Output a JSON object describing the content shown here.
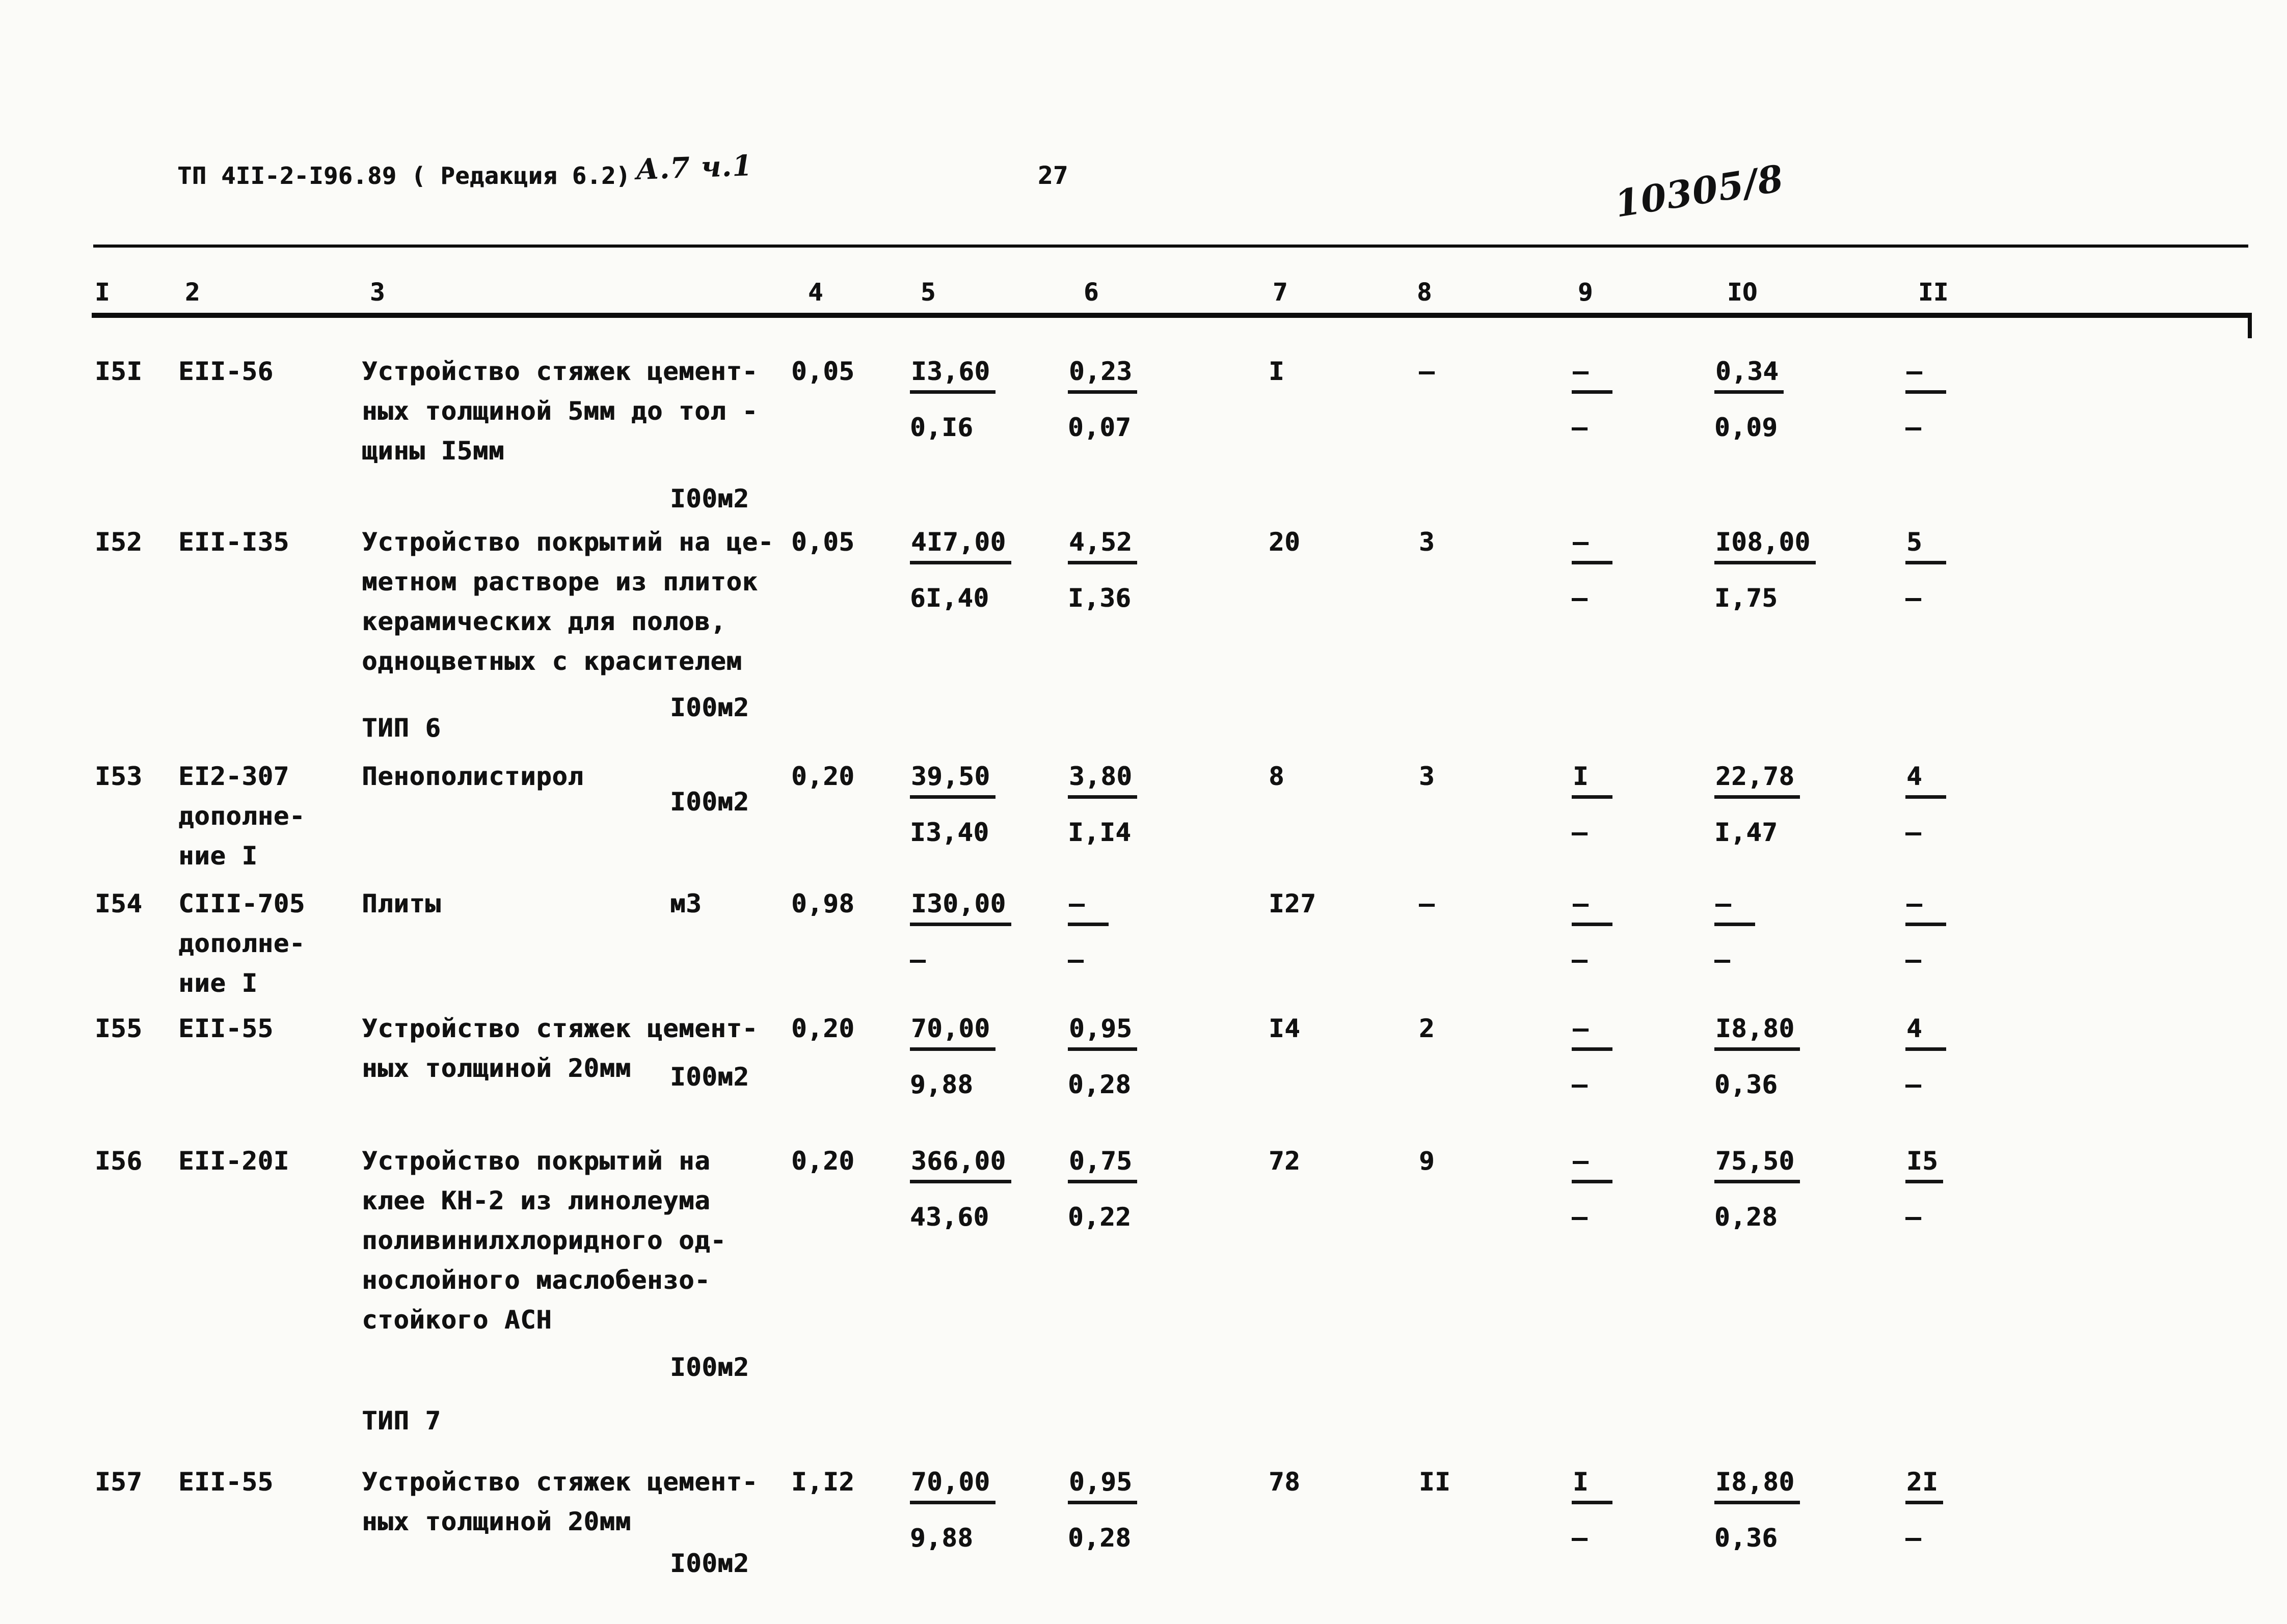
{
  "page": {
    "header": {
      "doc_code": "ТП 4II-2-I96.89 ( Редакция 6.2)",
      "handwritten_edition": "А.7 ч.1",
      "page_number": "27",
      "handwritten_ref": "10305/8"
    },
    "columns": [
      "I",
      "2",
      "3",
      "4",
      "5",
      "6",
      "7",
      "8",
      "9",
      "IO",
      "II"
    ]
  },
  "rows": [
    {
      "num": "I5I",
      "code": [
        "ЕII-56"
      ],
      "desc": [
        "Устройство стяжек цемент-",
        "ных толщиной 5мм до тол -",
        "щины I5мм"
      ],
      "unit": "I00м2",
      "c4": "0,05",
      "c5": [
        "I3,60",
        "0,I6"
      ],
      "c6": [
        "0,23",
        "0,07"
      ],
      "c7": "I",
      "c8": "–",
      "c9": [
        "–",
        "–"
      ],
      "c10": [
        "0,34",
        "0,09"
      ],
      "c11": [
        "–",
        "–"
      ]
    },
    {
      "num": "I52",
      "code": [
        "ЕII-I35"
      ],
      "desc": [
        "Устройство покрытий на це-",
        "метном растворе из плиток",
        "керамических для полов,",
        "одноцветных с красителем"
      ],
      "unit": "I00м2",
      "c4": "0,05",
      "c5": [
        "4I7,00",
        "6I,40"
      ],
      "c6": [
        "4,52",
        "I,36"
      ],
      "c7": "20",
      "c8": "3",
      "c9": [
        "–",
        "–"
      ],
      "c10": [
        "I08,00",
        "I,75"
      ],
      "c11": [
        "5",
        "–"
      ]
    },
    {
      "type": "section",
      "label": "ТИП 6"
    },
    {
      "num": "I53",
      "code": [
        "ЕI2-307",
        "дополне-",
        "ние I"
      ],
      "desc": [
        "Пенополистирол"
      ],
      "unit": "I00м2",
      "c4": "0,20",
      "c5": [
        "39,50",
        "I3,40"
      ],
      "c6": [
        "3,80",
        "I,I4"
      ],
      "c7": "8",
      "c8": "3",
      "c9": [
        "I",
        "–"
      ],
      "c10": [
        "22,78",
        "I,47"
      ],
      "c11": [
        "4",
        "–"
      ]
    },
    {
      "num": "I54",
      "code": [
        "СIII-705",
        "дополне-",
        "ние I"
      ],
      "desc": [
        "Плиты"
      ],
      "unit": "м3",
      "c4": "0,98",
      "c5": [
        "I30,00",
        "–"
      ],
      "c6": [
        "–",
        "–"
      ],
      "c7": "I27",
      "c8": "–",
      "c9": [
        "–",
        "–"
      ],
      "c10": [
        "–",
        "–"
      ],
      "c11": [
        "–",
        "–"
      ]
    },
    {
      "num": "I55",
      "code": [
        "ЕII-55"
      ],
      "desc": [
        "Устройство стяжек цемент-",
        "ных толщиной 20мм"
      ],
      "unit": "I00м2",
      "c4": "0,20",
      "c5": [
        "70,00",
        "9,88"
      ],
      "c6": [
        "0,95",
        "0,28"
      ],
      "c7": "I4",
      "c8": "2",
      "c9": [
        "–",
        "–"
      ],
      "c10": [
        "I8,80",
        "0,36"
      ],
      "c11": [
        "4",
        "–"
      ]
    },
    {
      "num": "I56",
      "code": [
        "ЕII-20I"
      ],
      "desc": [
        "Устройство покрытий на",
        "клее КН-2 из линолеума",
        "поливинилхлоридного од-",
        "нослойного маслобензо-",
        "стойкого АСН"
      ],
      "unit": "I00м2",
      "c4": "0,20",
      "c5": [
        "366,00",
        "43,60"
      ],
      "c6": [
        "0,75",
        "0,22"
      ],
      "c7": "72",
      "c8": "9",
      "c9": [
        "–",
        "–"
      ],
      "c10": [
        "75,50",
        "0,28"
      ],
      "c11": [
        "I5",
        "–"
      ]
    },
    {
      "type": "section",
      "label": "ТИП 7"
    },
    {
      "num": "I57",
      "code": [
        "ЕII-55"
      ],
      "desc": [
        "Устройство стяжек цемент-",
        "ных толщиной 20мм"
      ],
      "unit": "I00м2",
      "c4": "I,I2",
      "c5": [
        "70,00",
        "9,88"
      ],
      "c6": [
        "0,95",
        "0,28"
      ],
      "c7": "78",
      "c8": "II",
      "c9": [
        "I",
        "–"
      ],
      "c10": [
        "I8,80",
        "0,36"
      ],
      "c11": [
        "2I",
        "–"
      ]
    }
  ]
}
